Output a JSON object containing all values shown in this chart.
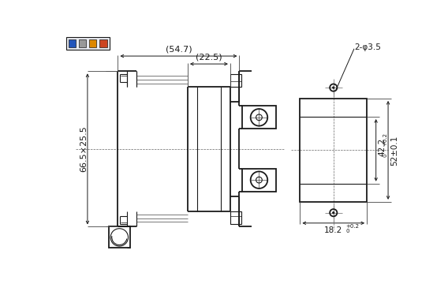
{
  "lc": "#1a1a1a",
  "dim_547": "(54.7)",
  "dim_225": "(22.5)",
  "dim_665x255": "66.5×25.5",
  "dim_2phi35": "2-φ3.5",
  "dim_422": "42.2",
  "dim_52": "52±0.1",
  "dim_182": "18.2"
}
